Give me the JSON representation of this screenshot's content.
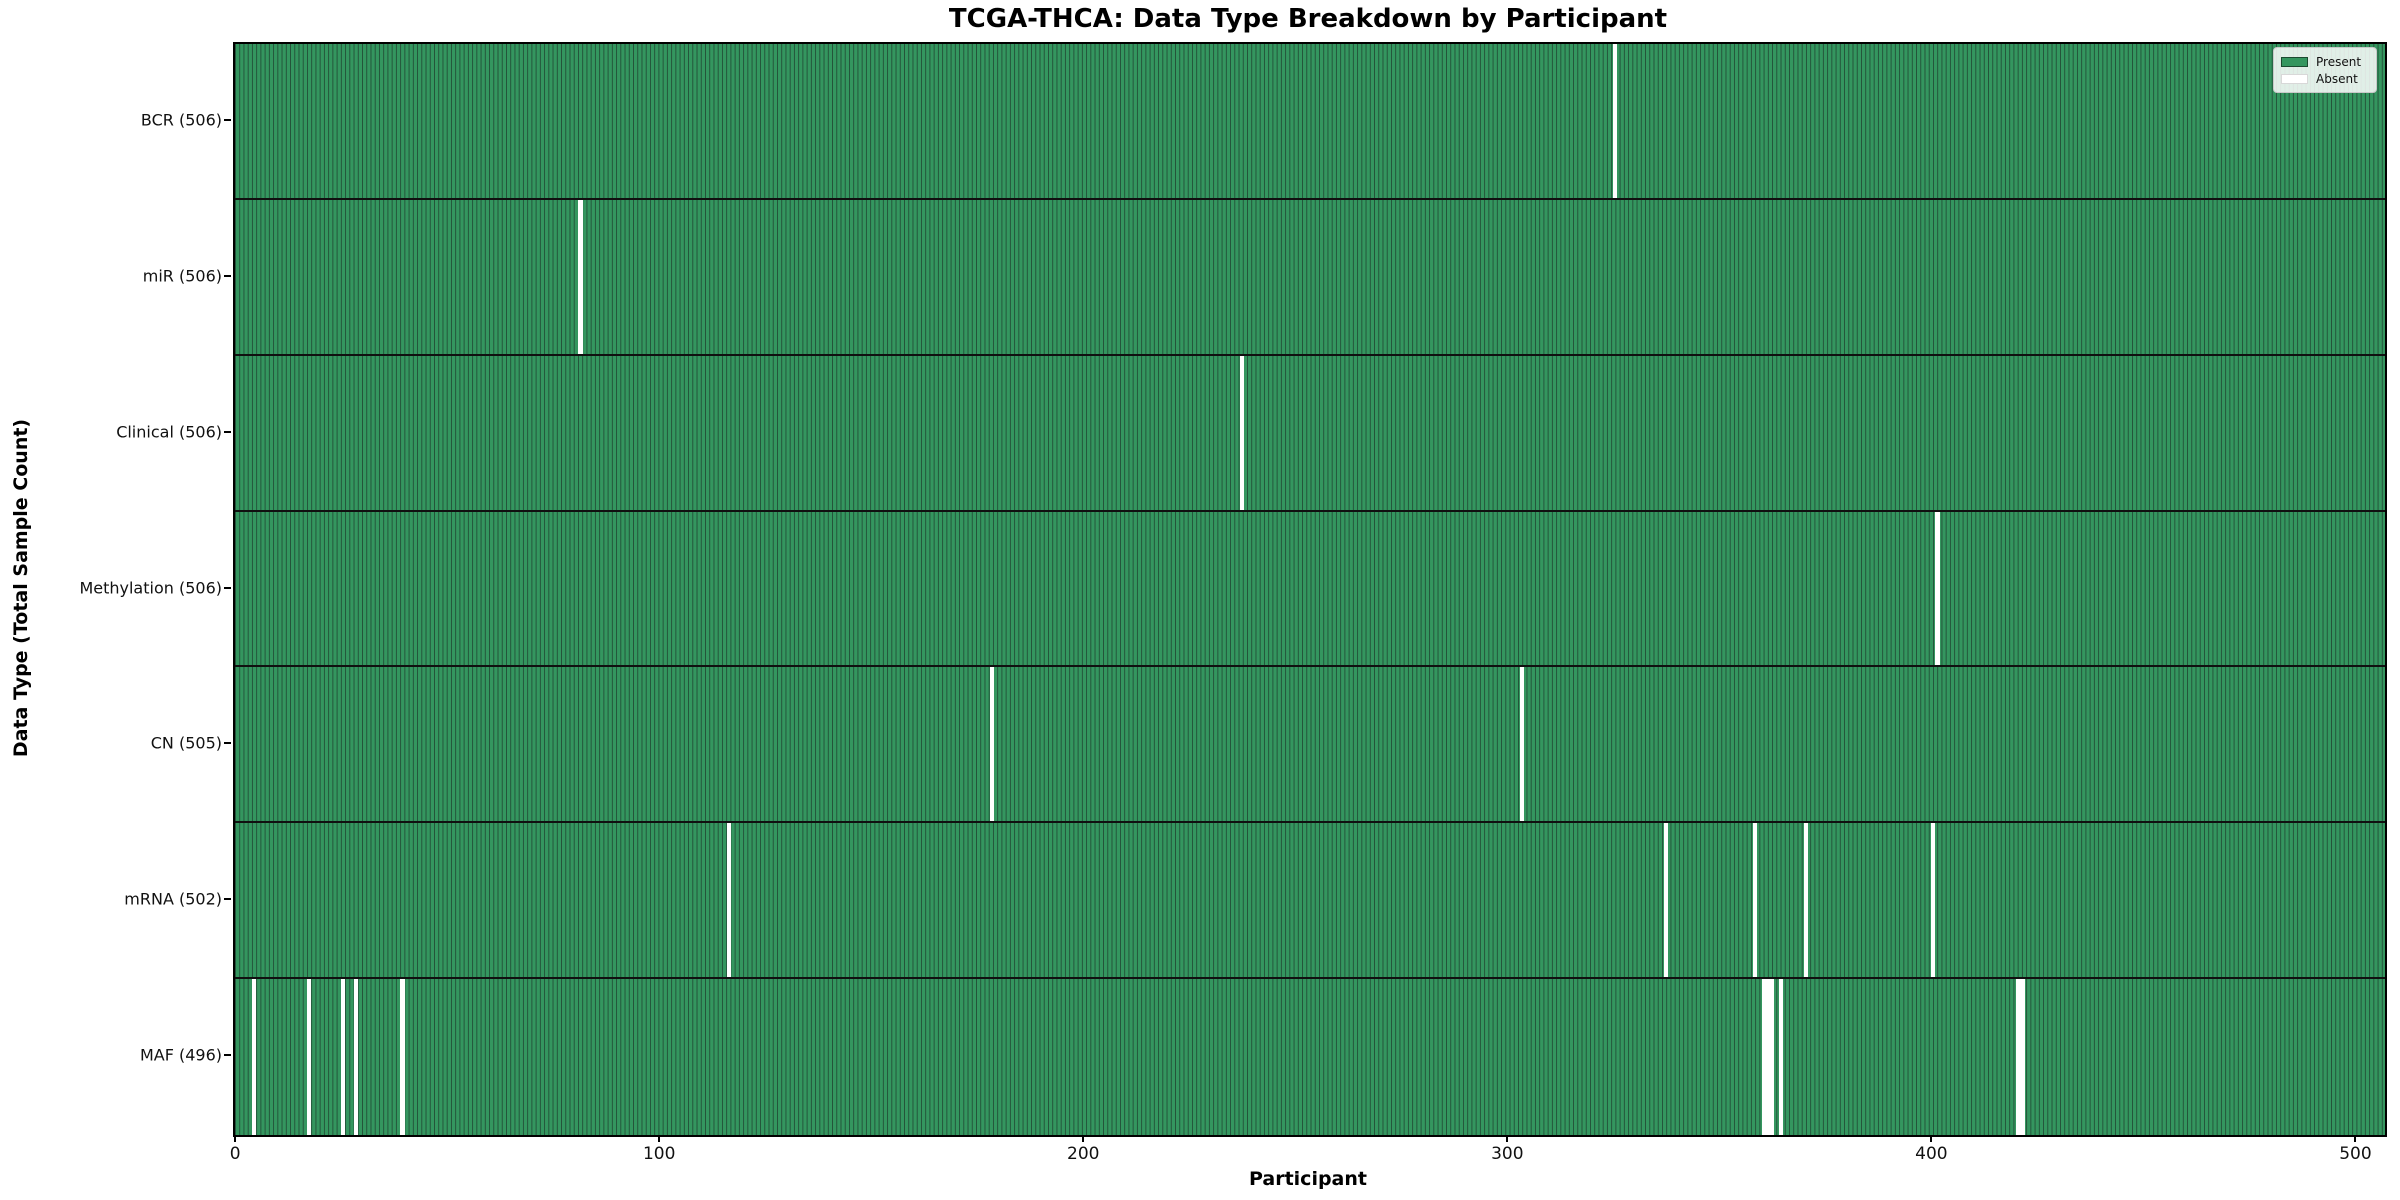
{
  "title": "TCGA-THCA: Data Type Breakdown by Participant",
  "xlabel": "Participant",
  "ylabel": "Data Type (Total Sample Count)",
  "legend": {
    "present_label": "Present",
    "absent_label": "Absent"
  },
  "colors": {
    "present_fill": "#34965f",
    "cell_edge": "#235239",
    "absent_fill": "#ffffff",
    "row_separator": "#101010",
    "plot_border": "#000000"
  },
  "chart_data": {
    "type": "heatmap",
    "title": "TCGA-THCA: Data Type Breakdown by Participant",
    "xlabel": "Participant",
    "ylabel": "Data Type (Total Sample Count)",
    "n_participants": 507,
    "x_range": [
      -0.5,
      506.5
    ],
    "x_ticks": [
      0,
      100,
      200,
      300,
      400,
      500
    ],
    "grid": false,
    "legend_position": "upper right",
    "legend_entries": [
      {
        "label": "Present",
        "color": "#34965f"
      },
      {
        "label": "Absent",
        "color": "#ffffff"
      }
    ],
    "rows": [
      {
        "data_type": "BCR",
        "label": "BCR (506)",
        "total_samples": 506,
        "absent_participants": [
          325
        ]
      },
      {
        "data_type": "miR",
        "label": "miR (506)",
        "total_samples": 506,
        "absent_participants": [
          81
        ]
      },
      {
        "data_type": "Clinical",
        "label": "Clinical (506)",
        "total_samples": 506,
        "absent_participants": [
          237
        ]
      },
      {
        "data_type": "Methylation",
        "label": "Methylation (506)",
        "total_samples": 506,
        "absent_participants": [
          401
        ]
      },
      {
        "data_type": "CN",
        "label": "CN (505)",
        "total_samples": 505,
        "absent_participants": [
          178,
          303
        ]
      },
      {
        "data_type": "mRNA",
        "label": "mRNA (502)",
        "total_samples": 502,
        "absent_participants": [
          116,
          337,
          358,
          370,
          400
        ]
      },
      {
        "data_type": "MAF",
        "label": "MAF (496)",
        "total_samples": 496,
        "absent_participants": [
          4,
          17,
          25,
          28,
          39,
          360,
          361,
          362,
          364,
          420,
          421
        ]
      }
    ]
  }
}
